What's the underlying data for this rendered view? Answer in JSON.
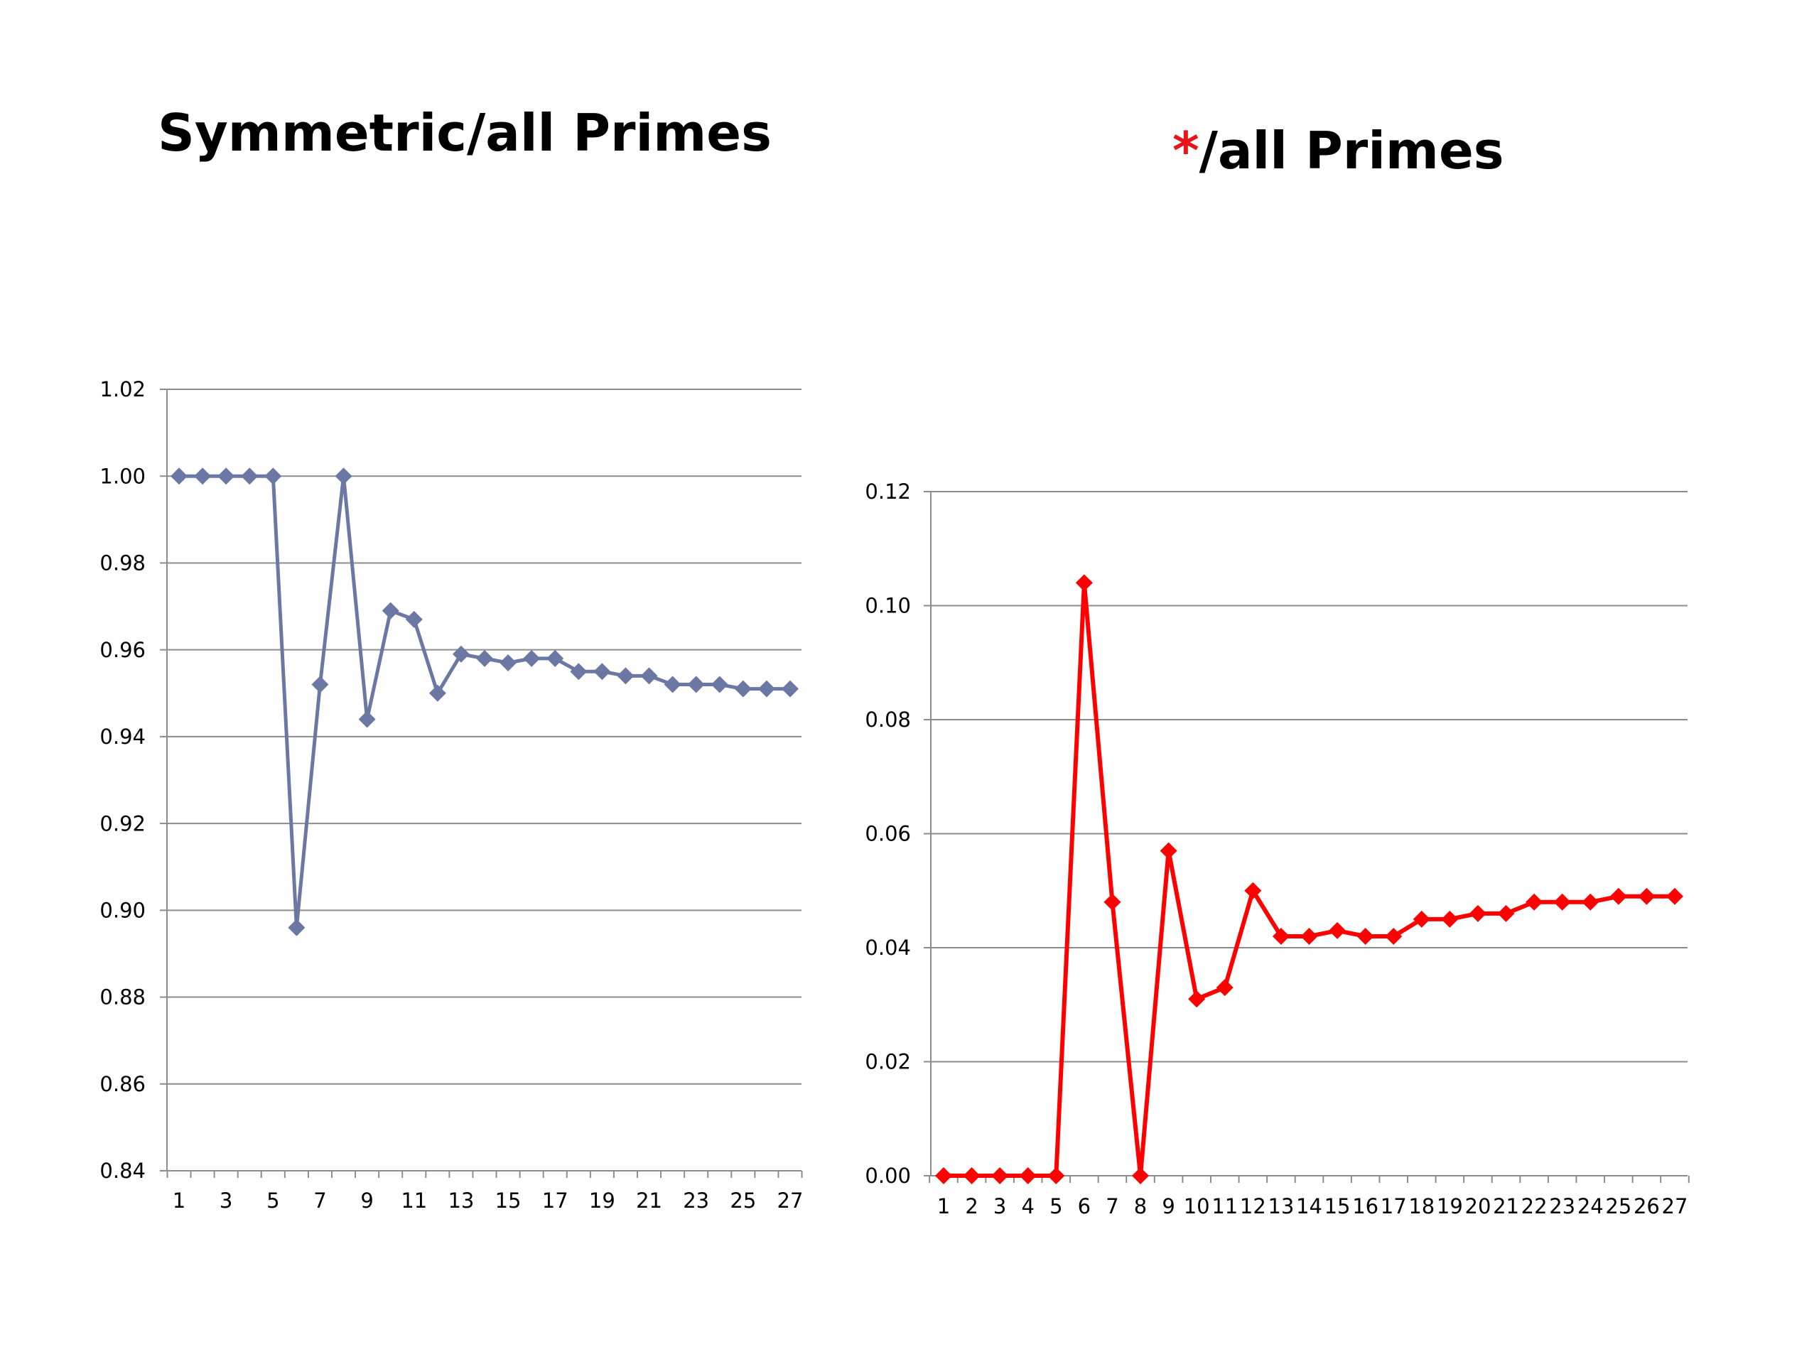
{
  "titles": {
    "left": "Symmetric/all Primes",
    "right_star": "*",
    "right_rest": "/all Primes",
    "star_color": "#e8141a"
  },
  "chart_data": [
    {
      "type": "line",
      "title": "Symmetric/all Primes",
      "xlabel": "",
      "ylabel": "",
      "x": [
        1,
        2,
        3,
        4,
        5,
        6,
        7,
        8,
        9,
        10,
        11,
        12,
        13,
        14,
        15,
        16,
        17,
        18,
        19,
        20,
        21,
        22,
        23,
        24,
        25,
        26,
        27
      ],
      "x_tick_labels": [
        "1",
        "3",
        "5",
        "7",
        "9",
        "11",
        "13",
        "15",
        "17",
        "19",
        "21",
        "23",
        "25",
        "27"
      ],
      "y_tick_labels": [
        "0.84",
        "0.86",
        "0.88",
        "0.90",
        "0.92",
        "0.94",
        "0.96",
        "0.98",
        "1.00",
        "1.02"
      ],
      "ylim": [
        0.84,
        1.02
      ],
      "grid": "horizontal",
      "marker": "diamond",
      "color": "#6b78a3",
      "series": [
        {
          "values": [
            1.0,
            1.0,
            1.0,
            1.0,
            1.0,
            0.896,
            0.952,
            1.0,
            0.944,
            0.969,
            0.967,
            0.95,
            0.959,
            0.958,
            0.957,
            0.958,
            0.958,
            0.955,
            0.955,
            0.954,
            0.954,
            0.952,
            0.952,
            0.952,
            0.951,
            0.951,
            0.951
          ]
        }
      ]
    },
    {
      "type": "line",
      "title": "*/all Primes",
      "xlabel": "",
      "ylabel": "",
      "x": [
        1,
        2,
        3,
        4,
        5,
        6,
        7,
        8,
        9,
        10,
        11,
        12,
        13,
        14,
        15,
        16,
        17,
        18,
        19,
        20,
        21,
        22,
        23,
        24,
        25,
        26,
        27
      ],
      "x_tick_labels": [
        "1",
        "2",
        "3",
        "4",
        "5",
        "6",
        "7",
        "8",
        "9",
        "10",
        "11",
        "12",
        "13",
        "14",
        "15",
        "16",
        "17",
        "18",
        "19",
        "20",
        "21",
        "22",
        "23",
        "24",
        "25",
        "26",
        "27"
      ],
      "y_tick_labels": [
        "0.00",
        "0.02",
        "0.04",
        "0.06",
        "0.08",
        "0.10",
        "0.12"
      ],
      "ylim": [
        0.0,
        0.12
      ],
      "grid": "horizontal",
      "marker": "diamond",
      "color": "#ff0000",
      "series": [
        {
          "values": [
            0.0,
            0.0,
            0.0,
            0.0,
            0.0,
            0.104,
            0.048,
            0.0,
            0.057,
            0.031,
            0.033,
            0.05,
            0.042,
            0.042,
            0.043,
            0.042,
            0.042,
            0.045,
            0.045,
            0.046,
            0.046,
            0.048,
            0.048,
            0.048,
            0.049,
            0.049,
            0.049
          ]
        }
      ]
    }
  ]
}
